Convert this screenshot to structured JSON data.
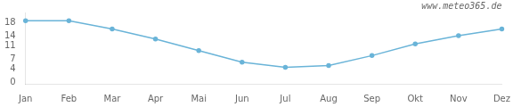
{
  "chart_data": {
    "type": "line",
    "categories": [
      "Jan",
      "Feb",
      "Mar",
      "Apr",
      "Mai",
      "Jun",
      "Jul",
      "Aug",
      "Sep",
      "Okt",
      "Nov",
      "Dez"
    ],
    "values": [
      18.5,
      18.5,
      16.0,
      13.0,
      9.5,
      6.0,
      4.5,
      5.0,
      8.0,
      11.5,
      14.0,
      16.0
    ],
    "color": "#6ab4d8",
    "marker": "circle",
    "ylim": [
      -0.5,
      21
    ],
    "yticks": [
      0,
      4,
      7,
      11,
      14,
      18
    ],
    "grid": false,
    "annotations": [
      "www.meteo365.de"
    ]
  }
}
